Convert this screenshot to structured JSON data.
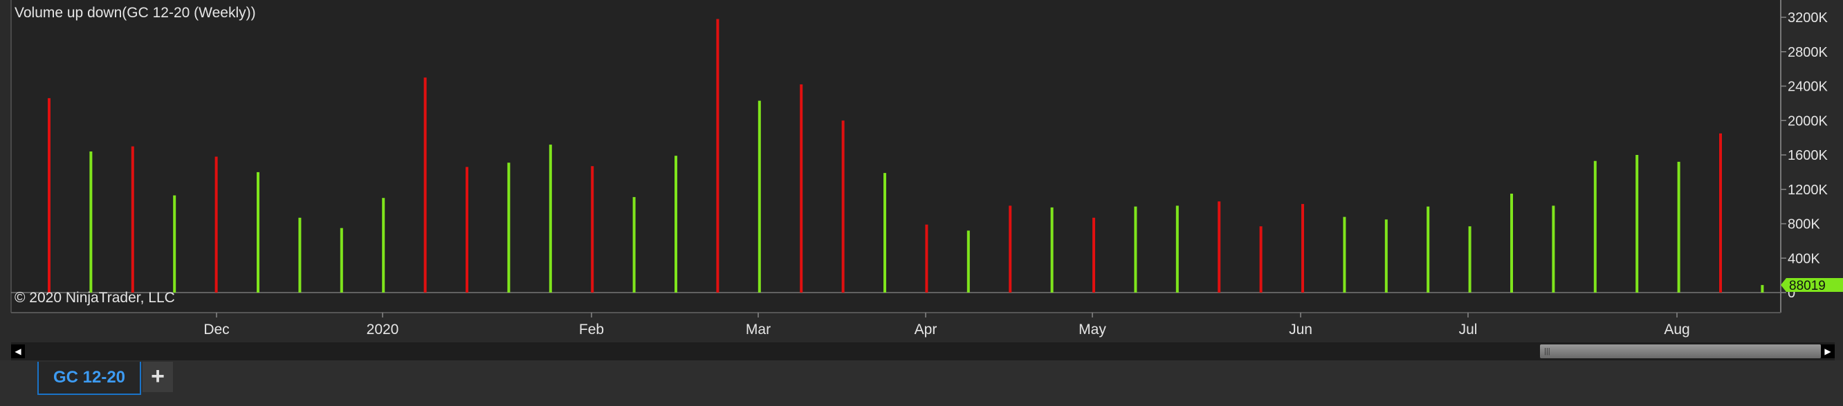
{
  "title": "Volume up down(GC 12-20 (Weekly))",
  "copyright": "© 2020 NinjaTrader, LLC",
  "tab": {
    "label": "GC 12-20",
    "add_label": "+"
  },
  "colors": {
    "up": "#7fe51c",
    "down": "#e01010",
    "background": "#232323",
    "axis": "#888888",
    "label_badge": "#7fe51c"
  },
  "chart_data": {
    "type": "bar",
    "title": "Volume up down(GC 12-20 (Weekly))",
    "ylim": [
      0,
      3200000
    ],
    "y_ticks": [
      "0",
      "400K",
      "800K",
      "1200K",
      "1600K",
      "2000K",
      "2400K",
      "2800K",
      "3200K"
    ],
    "x_tick_labels": [
      "Dec",
      "2020",
      "Feb",
      "Mar",
      "Apr",
      "May",
      "Jun",
      "Jul",
      "Aug"
    ],
    "last_value_label": "88019",
    "series": [
      {
        "direction": "down",
        "value": 2260000
      },
      {
        "direction": "up",
        "value": 1640000
      },
      {
        "direction": "down",
        "value": 1700000
      },
      {
        "direction": "up",
        "value": 1130000
      },
      {
        "direction": "down",
        "value": 1580000
      },
      {
        "direction": "up",
        "value": 1400000
      },
      {
        "direction": "up",
        "value": 870000
      },
      {
        "direction": "up",
        "value": 750000
      },
      {
        "direction": "up",
        "value": 1100000
      },
      {
        "direction": "down",
        "value": 2500000
      },
      {
        "direction": "down",
        "value": 1460000
      },
      {
        "direction": "up",
        "value": 1510000
      },
      {
        "direction": "up",
        "value": 1720000
      },
      {
        "direction": "down",
        "value": 1470000
      },
      {
        "direction": "up",
        "value": 1110000
      },
      {
        "direction": "up",
        "value": 1590000
      },
      {
        "direction": "down",
        "value": 3180000
      },
      {
        "direction": "up",
        "value": 2230000
      },
      {
        "direction": "down",
        "value": 2420000
      },
      {
        "direction": "down",
        "value": 2000000
      },
      {
        "direction": "up",
        "value": 1390000
      },
      {
        "direction": "down",
        "value": 790000
      },
      {
        "direction": "up",
        "value": 720000
      },
      {
        "direction": "down",
        "value": 1010000
      },
      {
        "direction": "up",
        "value": 990000
      },
      {
        "direction": "down",
        "value": 870000
      },
      {
        "direction": "up",
        "value": 1000000
      },
      {
        "direction": "up",
        "value": 1010000
      },
      {
        "direction": "down",
        "value": 1060000
      },
      {
        "direction": "down",
        "value": 770000
      },
      {
        "direction": "down",
        "value": 1030000
      },
      {
        "direction": "up",
        "value": 880000
      },
      {
        "direction": "up",
        "value": 850000
      },
      {
        "direction": "up",
        "value": 1000000
      },
      {
        "direction": "up",
        "value": 770000
      },
      {
        "direction": "up",
        "value": 1150000
      },
      {
        "direction": "up",
        "value": 1010000
      },
      {
        "direction": "up",
        "value": 1530000
      },
      {
        "direction": "up",
        "value": 1600000
      },
      {
        "direction": "up",
        "value": 1520000
      },
      {
        "direction": "down",
        "value": 1850000
      },
      {
        "direction": "up",
        "value": 88019
      }
    ]
  }
}
